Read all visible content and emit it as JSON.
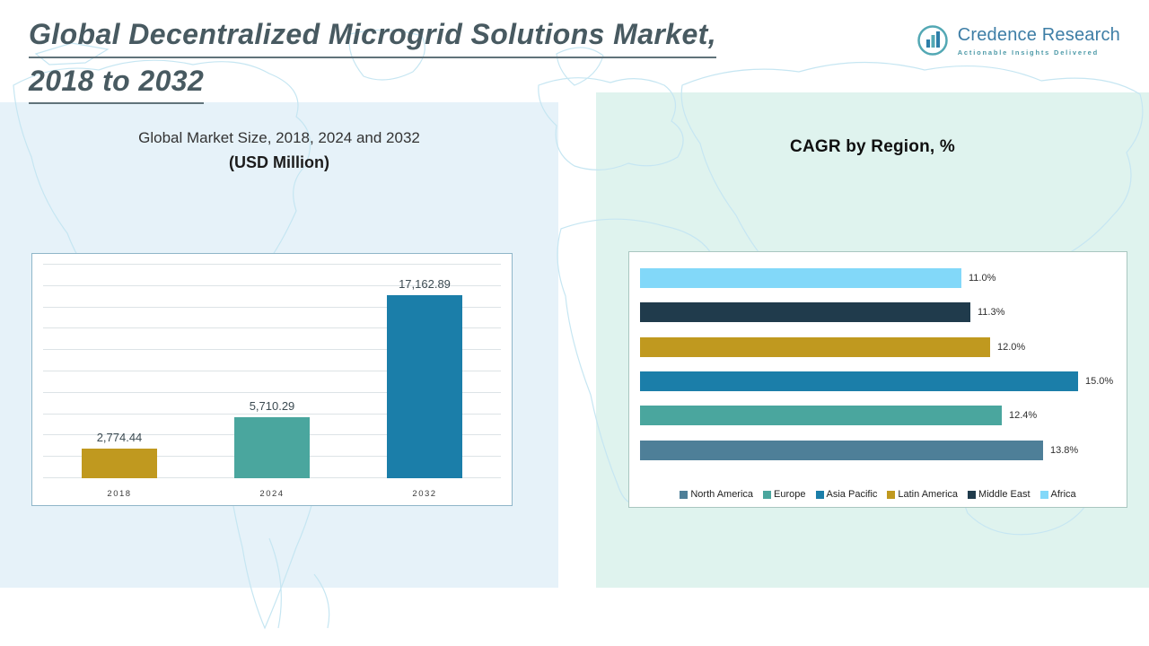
{
  "header": {
    "title_line1": "Global Decentralized Microgrid Solutions Market,",
    "title_line2": "2018 to 2032",
    "logo": {
      "name": "Credence Research",
      "tagline": "Actionable Insights Delivered"
    }
  },
  "left_panel": {
    "title": "Global Market Size, 2018, 2024 and 2032",
    "units": "(USD Million)"
  },
  "right_panel": {
    "title": "CAGR by Region, %"
  },
  "colors": {
    "gold": "#c0991f",
    "teal": "#4aa69e",
    "blue": "#1b7ea9",
    "navy": "#203b4c",
    "light_blue": "#82d8f9",
    "slate": "#4e7f98",
    "panel_left_bg": "#e6f2f9",
    "panel_right_bg": "#dff3ee"
  },
  "chart_data": [
    {
      "type": "bar",
      "title": "Global Market Size, 2018, 2024 and 2032 (USD Million)",
      "categories": [
        "2018",
        "2024",
        "2032"
      ],
      "values": [
        2774.44,
        5710.29,
        17162.89
      ],
      "data_labels": [
        "2,774.44",
        "5,710.29",
        "17,162.89"
      ],
      "bar_colors": [
        "#c0991f",
        "#4aa69e",
        "#1b7ea9"
      ],
      "xlabel": "",
      "ylabel": "",
      "ylim": [
        0,
        20000
      ],
      "grid": true,
      "legend_position": "none"
    },
    {
      "type": "bar-horizontal",
      "title": "CAGR by Region, %",
      "categories": [
        "Africa",
        "Middle East",
        "Latin America",
        "Asia Pacific",
        "Europe",
        "North America"
      ],
      "values": [
        11.0,
        11.3,
        12.0,
        15.0,
        12.4,
        13.8
      ],
      "data_labels": [
        "11.0%",
        "11.3%",
        "12.0%",
        "15.0%",
        "12.4%",
        "13.8%"
      ],
      "bar_colors": [
        "#82d8f9",
        "#203b4c",
        "#c0991f",
        "#1b7ea9",
        "#4aa69e",
        "#4e7f98"
      ],
      "xlim": [
        0,
        16
      ],
      "grid": false,
      "legend_position": "bottom",
      "legend": [
        {
          "label": "North America",
          "color": "#4e7f98"
        },
        {
          "label": "Europe",
          "color": "#4aa69e"
        },
        {
          "label": "Asia Pacific",
          "color": "#1b7ea9"
        },
        {
          "label": "Latin America",
          "color": "#c0991f"
        },
        {
          "label": "Middle East",
          "color": "#203b4c"
        },
        {
          "label": "Africa",
          "color": "#82d8f9"
        }
      ]
    }
  ]
}
